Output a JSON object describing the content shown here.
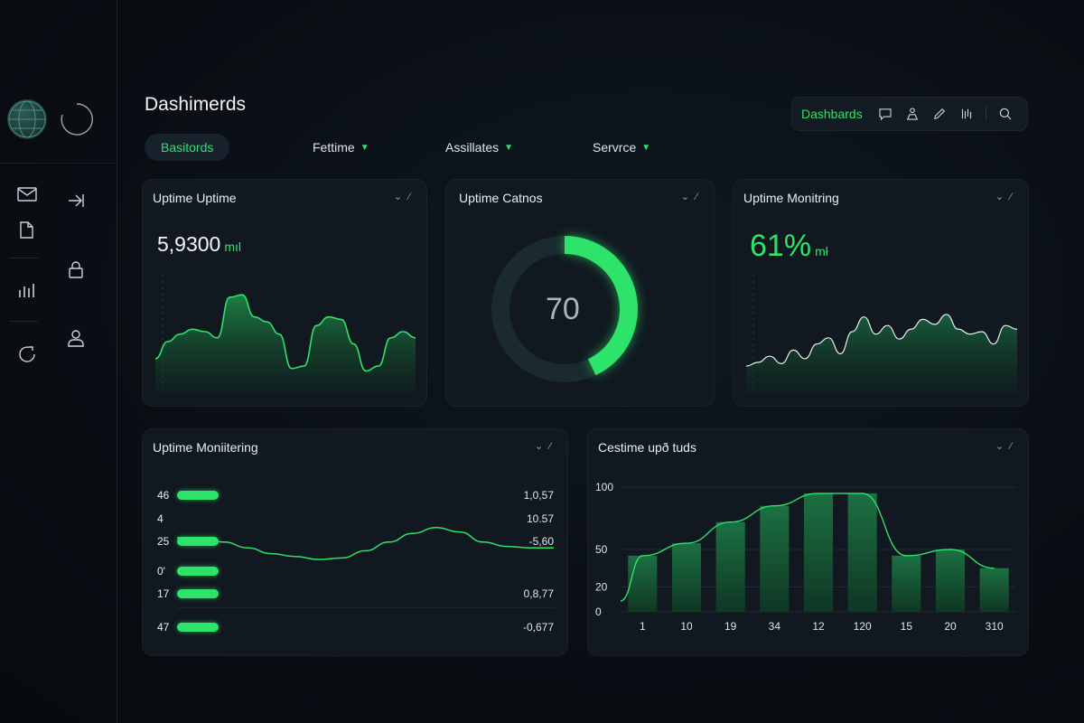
{
  "app": {
    "title": "Dashimerds"
  },
  "tabs": [
    {
      "label": "Basitords",
      "active": true
    },
    {
      "label": "Fettime",
      "active": false
    },
    {
      "label": "Assillates",
      "active": false
    },
    {
      "label": "Servrce",
      "active": false
    }
  ],
  "toolbar": {
    "label": "Dashbards",
    "icons": [
      "chat-icon",
      "upload-icon",
      "pen-icon",
      "stats-icon",
      "search-icon"
    ]
  },
  "sidebar": {
    "icons": [
      "globe-icon",
      "spinner-icon",
      "mail-icon",
      "arrow-right-icon",
      "folder-icon",
      "lock-icon",
      "bar-chart-icon",
      "user-icon",
      "refresh-icon"
    ]
  },
  "colors": {
    "accent": "#2ee36a",
    "card_bg": "#111820",
    "page_bg": "#0a0f15"
  },
  "cards": {
    "uptime": {
      "title": "Uptime Uptime",
      "value": "5,9300",
      "unit": "mıl",
      "menu": "⌄ ⁄"
    },
    "gauge": {
      "title": "Uptime Catnos",
      "value": "70",
      "progress": 0.43,
      "menu": "⌄ ⁄"
    },
    "monitoring": {
      "title": "Uptime Monitring",
      "value": "61%",
      "unit": "mł",
      "menu": "⌄ ⁄"
    },
    "list": {
      "title": "Uptime Moniitering",
      "menu": "⌄ ⁄",
      "rows": [
        {
          "label": "46",
          "value": "1,0,57"
        },
        {
          "label": "4",
          "value": "10.57"
        },
        {
          "label": "25",
          "value": "-5,60"
        },
        {
          "label": "0'",
          "value": ""
        },
        {
          "label": "17",
          "value": "0,8,77"
        },
        {
          "label": "47",
          "value": "-0,677"
        }
      ]
    },
    "bars": {
      "title": "Cestime upð tuds",
      "menu": "⌄ ⁄"
    }
  },
  "chart_data": [
    {
      "type": "area",
      "values": [
        28,
        42,
        48,
        52,
        50,
        45,
        78,
        80,
        62,
        58,
        48,
        20,
        22,
        55,
        62,
        60,
        40,
        18,
        22,
        45,
        50,
        45
      ],
      "grid": false
    },
    {
      "type": "area",
      "values": [
        22,
        25,
        30,
        24,
        35,
        28,
        40,
        45,
        32,
        50,
        62,
        48,
        55,
        44,
        52,
        60,
        56,
        64,
        52,
        48,
        50,
        40,
        55,
        52
      ],
      "grid": false
    },
    {
      "type": "line",
      "values": [
        50,
        50,
        44,
        36,
        28,
        24,
        20,
        22,
        32,
        44,
        56,
        64,
        58,
        44,
        38,
        36,
        36
      ],
      "grid": true
    },
    {
      "type": "bar",
      "categories": [
        "1",
        "10",
        "19",
        "34",
        "12",
        "120",
        "15",
        "20",
        "310"
      ],
      "values": [
        45,
        55,
        72,
        85,
        95,
        95,
        45,
        50,
        35
      ],
      "ylim": [
        0,
        100
      ],
      "yticks": [
        "0",
        "20",
        "50",
        "100"
      ],
      "grid": true
    }
  ]
}
